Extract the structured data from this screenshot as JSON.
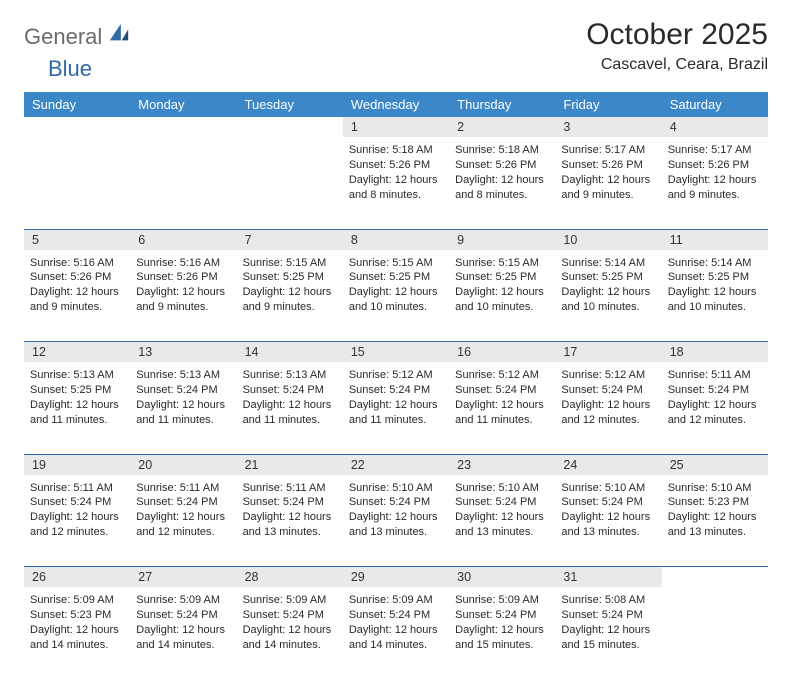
{
  "brand": {
    "part1": "General",
    "part2": "Blue"
  },
  "header": {
    "month_title": "October 2025",
    "location": "Cascavel, Ceara, Brazil"
  },
  "theme": {
    "header_row_bg": "#3b87c8",
    "header_row_text": "#ffffff",
    "daynum_bg": "#e9e9e9",
    "rule_color": "#2f6aa8",
    "page_bg": "#ffffff",
    "text_color": "#2a2a2a",
    "logo_gray": "#6b6b6b",
    "logo_blue": "#2f6aa8"
  },
  "calendar": {
    "type": "table",
    "day_headers": [
      "Sunday",
      "Monday",
      "Tuesday",
      "Wednesday",
      "Thursday",
      "Friday",
      "Saturday"
    ],
    "weeks": [
      {
        "days": [
          {
            "num": "",
            "empty": true
          },
          {
            "num": "",
            "empty": true
          },
          {
            "num": "",
            "empty": true
          },
          {
            "num": "1",
            "sunrise": "Sunrise: 5:18 AM",
            "sunset": "Sunset: 5:26 PM",
            "daylight1": "Daylight: 12 hours",
            "daylight2": "and 8 minutes."
          },
          {
            "num": "2",
            "sunrise": "Sunrise: 5:18 AM",
            "sunset": "Sunset: 5:26 PM",
            "daylight1": "Daylight: 12 hours",
            "daylight2": "and 8 minutes."
          },
          {
            "num": "3",
            "sunrise": "Sunrise: 5:17 AM",
            "sunset": "Sunset: 5:26 PM",
            "daylight1": "Daylight: 12 hours",
            "daylight2": "and 9 minutes."
          },
          {
            "num": "4",
            "sunrise": "Sunrise: 5:17 AM",
            "sunset": "Sunset: 5:26 PM",
            "daylight1": "Daylight: 12 hours",
            "daylight2": "and 9 minutes."
          }
        ]
      },
      {
        "days": [
          {
            "num": "5",
            "sunrise": "Sunrise: 5:16 AM",
            "sunset": "Sunset: 5:26 PM",
            "daylight1": "Daylight: 12 hours",
            "daylight2": "and 9 minutes."
          },
          {
            "num": "6",
            "sunrise": "Sunrise: 5:16 AM",
            "sunset": "Sunset: 5:26 PM",
            "daylight1": "Daylight: 12 hours",
            "daylight2": "and 9 minutes."
          },
          {
            "num": "7",
            "sunrise": "Sunrise: 5:15 AM",
            "sunset": "Sunset: 5:25 PM",
            "daylight1": "Daylight: 12 hours",
            "daylight2": "and 9 minutes."
          },
          {
            "num": "8",
            "sunrise": "Sunrise: 5:15 AM",
            "sunset": "Sunset: 5:25 PM",
            "daylight1": "Daylight: 12 hours",
            "daylight2": "and 10 minutes."
          },
          {
            "num": "9",
            "sunrise": "Sunrise: 5:15 AM",
            "sunset": "Sunset: 5:25 PM",
            "daylight1": "Daylight: 12 hours",
            "daylight2": "and 10 minutes."
          },
          {
            "num": "10",
            "sunrise": "Sunrise: 5:14 AM",
            "sunset": "Sunset: 5:25 PM",
            "daylight1": "Daylight: 12 hours",
            "daylight2": "and 10 minutes."
          },
          {
            "num": "11",
            "sunrise": "Sunrise: 5:14 AM",
            "sunset": "Sunset: 5:25 PM",
            "daylight1": "Daylight: 12 hours",
            "daylight2": "and 10 minutes."
          }
        ]
      },
      {
        "days": [
          {
            "num": "12",
            "sunrise": "Sunrise: 5:13 AM",
            "sunset": "Sunset: 5:25 PM",
            "daylight1": "Daylight: 12 hours",
            "daylight2": "and 11 minutes."
          },
          {
            "num": "13",
            "sunrise": "Sunrise: 5:13 AM",
            "sunset": "Sunset: 5:24 PM",
            "daylight1": "Daylight: 12 hours",
            "daylight2": "and 11 minutes."
          },
          {
            "num": "14",
            "sunrise": "Sunrise: 5:13 AM",
            "sunset": "Sunset: 5:24 PM",
            "daylight1": "Daylight: 12 hours",
            "daylight2": "and 11 minutes."
          },
          {
            "num": "15",
            "sunrise": "Sunrise: 5:12 AM",
            "sunset": "Sunset: 5:24 PM",
            "daylight1": "Daylight: 12 hours",
            "daylight2": "and 11 minutes."
          },
          {
            "num": "16",
            "sunrise": "Sunrise: 5:12 AM",
            "sunset": "Sunset: 5:24 PM",
            "daylight1": "Daylight: 12 hours",
            "daylight2": "and 11 minutes."
          },
          {
            "num": "17",
            "sunrise": "Sunrise: 5:12 AM",
            "sunset": "Sunset: 5:24 PM",
            "daylight1": "Daylight: 12 hours",
            "daylight2": "and 12 minutes."
          },
          {
            "num": "18",
            "sunrise": "Sunrise: 5:11 AM",
            "sunset": "Sunset: 5:24 PM",
            "daylight1": "Daylight: 12 hours",
            "daylight2": "and 12 minutes."
          }
        ]
      },
      {
        "days": [
          {
            "num": "19",
            "sunrise": "Sunrise: 5:11 AM",
            "sunset": "Sunset: 5:24 PM",
            "daylight1": "Daylight: 12 hours",
            "daylight2": "and 12 minutes."
          },
          {
            "num": "20",
            "sunrise": "Sunrise: 5:11 AM",
            "sunset": "Sunset: 5:24 PM",
            "daylight1": "Daylight: 12 hours",
            "daylight2": "and 12 minutes."
          },
          {
            "num": "21",
            "sunrise": "Sunrise: 5:11 AM",
            "sunset": "Sunset: 5:24 PM",
            "daylight1": "Daylight: 12 hours",
            "daylight2": "and 13 minutes."
          },
          {
            "num": "22",
            "sunrise": "Sunrise: 5:10 AM",
            "sunset": "Sunset: 5:24 PM",
            "daylight1": "Daylight: 12 hours",
            "daylight2": "and 13 minutes."
          },
          {
            "num": "23",
            "sunrise": "Sunrise: 5:10 AM",
            "sunset": "Sunset: 5:24 PM",
            "daylight1": "Daylight: 12 hours",
            "daylight2": "and 13 minutes."
          },
          {
            "num": "24",
            "sunrise": "Sunrise: 5:10 AM",
            "sunset": "Sunset: 5:24 PM",
            "daylight1": "Daylight: 12 hours",
            "daylight2": "and 13 minutes."
          },
          {
            "num": "25",
            "sunrise": "Sunrise: 5:10 AM",
            "sunset": "Sunset: 5:23 PM",
            "daylight1": "Daylight: 12 hours",
            "daylight2": "and 13 minutes."
          }
        ]
      },
      {
        "days": [
          {
            "num": "26",
            "sunrise": "Sunrise: 5:09 AM",
            "sunset": "Sunset: 5:23 PM",
            "daylight1": "Daylight: 12 hours",
            "daylight2": "and 14 minutes."
          },
          {
            "num": "27",
            "sunrise": "Sunrise: 5:09 AM",
            "sunset": "Sunset: 5:24 PM",
            "daylight1": "Daylight: 12 hours",
            "daylight2": "and 14 minutes."
          },
          {
            "num": "28",
            "sunrise": "Sunrise: 5:09 AM",
            "sunset": "Sunset: 5:24 PM",
            "daylight1": "Daylight: 12 hours",
            "daylight2": "and 14 minutes."
          },
          {
            "num": "29",
            "sunrise": "Sunrise: 5:09 AM",
            "sunset": "Sunset: 5:24 PM",
            "daylight1": "Daylight: 12 hours",
            "daylight2": "and 14 minutes."
          },
          {
            "num": "30",
            "sunrise": "Sunrise: 5:09 AM",
            "sunset": "Sunset: 5:24 PM",
            "daylight1": "Daylight: 12 hours",
            "daylight2": "and 15 minutes."
          },
          {
            "num": "31",
            "sunrise": "Sunrise: 5:08 AM",
            "sunset": "Sunset: 5:24 PM",
            "daylight1": "Daylight: 12 hours",
            "daylight2": "and 15 minutes."
          },
          {
            "num": "",
            "empty": true
          }
        ]
      }
    ]
  }
}
